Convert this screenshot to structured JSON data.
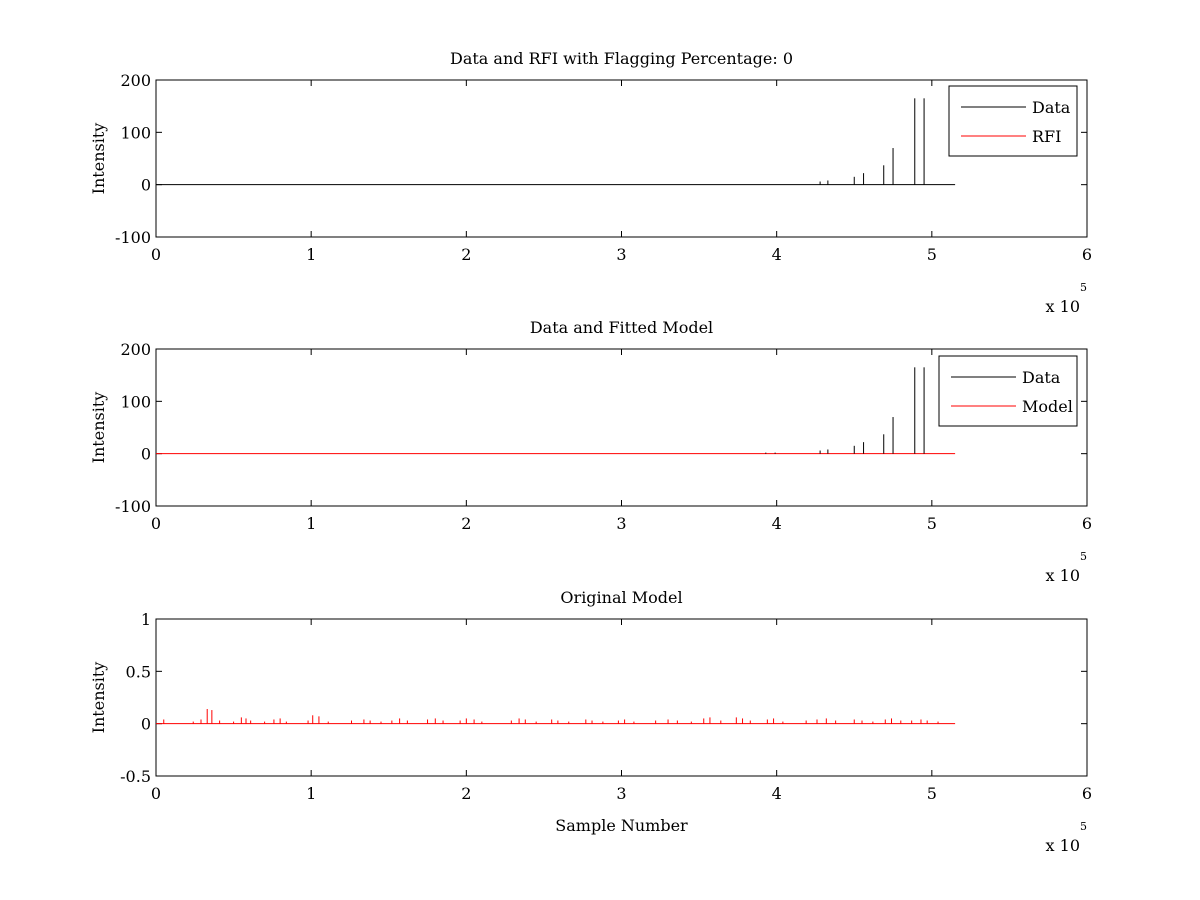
{
  "figure": {
    "background": "#ffffff"
  },
  "chart_data": [
    {
      "type": "line",
      "title": "Data and RFI with Flagging Percentage: 0",
      "xlabel": "",
      "ylabel": "Intensity",
      "xlim": [
        0,
        6
      ],
      "ylim": [
        -100,
        200
      ],
      "x_ticks": [
        "0",
        "1",
        "2",
        "3",
        "4",
        "5",
        "6"
      ],
      "y_ticks": [
        "-100",
        "0",
        "100",
        "200"
      ],
      "x_multiplier": {
        "base": "x 10",
        "exponent": "5"
      },
      "legend": {
        "position": "top-right",
        "entries": [
          {
            "label": "Data",
            "color": "#000000"
          },
          {
            "label": "RFI",
            "color": "#ff0000"
          }
        ]
      },
      "baseline": {
        "x_start": 0,
        "x_end": 5.15,
        "y": 0,
        "color": "#000000"
      },
      "series": [
        {
          "name": "Data",
          "color": "#000000",
          "spikes": [
            {
              "x": 4.28,
              "y": 6
            },
            {
              "x": 4.33,
              "y": 8
            },
            {
              "x": 4.5,
              "y": 15
            },
            {
              "x": 4.56,
              "y": 22
            },
            {
              "x": 4.69,
              "y": 37
            },
            {
              "x": 4.75,
              "y": 70
            },
            {
              "x": 4.89,
              "y": 165
            },
            {
              "x": 4.95,
              "y": 165
            }
          ]
        },
        {
          "name": "RFI",
          "color": "#ff0000",
          "spikes": []
        }
      ]
    },
    {
      "type": "line",
      "title": "Data and Fitted Model",
      "xlabel": "",
      "ylabel": "Intensity",
      "xlim": [
        0,
        6
      ],
      "ylim": [
        -100,
        200
      ],
      "x_ticks": [
        "0",
        "1",
        "2",
        "3",
        "4",
        "5",
        "6"
      ],
      "y_ticks": [
        "-100",
        "0",
        "100",
        "200"
      ],
      "x_multiplier": {
        "base": "x 10",
        "exponent": "5"
      },
      "legend": {
        "position": "top-right",
        "entries": [
          {
            "label": "Data",
            "color": "#000000"
          },
          {
            "label": "Model",
            "color": "#ff0000"
          }
        ]
      },
      "baseline": {
        "x_start": 0,
        "x_end": 5.15,
        "y": 0,
        "color": "#ff0000"
      },
      "series": [
        {
          "name": "Data",
          "color": "#000000",
          "spikes": [
            {
              "x": 3.93,
              "y": 2
            },
            {
              "x": 3.99,
              "y": 2
            },
            {
              "x": 4.28,
              "y": 6
            },
            {
              "x": 4.33,
              "y": 8
            },
            {
              "x": 4.5,
              "y": 15
            },
            {
              "x": 4.56,
              "y": 22
            },
            {
              "x": 4.69,
              "y": 37
            },
            {
              "x": 4.75,
              "y": 70
            },
            {
              "x": 4.89,
              "y": 165
            },
            {
              "x": 4.95,
              "y": 165
            }
          ]
        },
        {
          "name": "Model",
          "color": "#ff0000",
          "spikes": []
        }
      ]
    },
    {
      "type": "line",
      "title": "Original Model",
      "xlabel": "Sample Number",
      "ylabel": "Intensity",
      "xlim": [
        0,
        6
      ],
      "ylim": [
        -0.5,
        1
      ],
      "x_ticks": [
        "0",
        "1",
        "2",
        "3",
        "4",
        "5",
        "6"
      ],
      "y_ticks": [
        "-0.5",
        "0",
        "0.5",
        "1"
      ],
      "x_multiplier": {
        "base": "x 10",
        "exponent": "5"
      },
      "legend": null,
      "baseline": {
        "x_start": 0,
        "x_end": 5.15,
        "y": 0,
        "color": "#ff0000"
      },
      "series": [
        {
          "name": "",
          "color": "#ff0000",
          "spikes": [
            {
              "x": 0.05,
              "y": 0.04
            },
            {
              "x": 0.24,
              "y": 0.02
            },
            {
              "x": 0.29,
              "y": 0.04
            },
            {
              "x": 0.33,
              "y": 0.14
            },
            {
              "x": 0.36,
              "y": 0.13
            },
            {
              "x": 0.41,
              "y": 0.03
            },
            {
              "x": 0.5,
              "y": 0.02
            },
            {
              "x": 0.55,
              "y": 0.06
            },
            {
              "x": 0.58,
              "y": 0.05
            },
            {
              "x": 0.61,
              "y": 0.03
            },
            {
              "x": 0.7,
              "y": 0.02
            },
            {
              "x": 0.76,
              "y": 0.04
            },
            {
              "x": 0.8,
              "y": 0.05
            },
            {
              "x": 0.84,
              "y": 0.02
            },
            {
              "x": 0.98,
              "y": 0.03
            },
            {
              "x": 1.01,
              "y": 0.08
            },
            {
              "x": 1.05,
              "y": 0.07
            },
            {
              "x": 1.11,
              "y": 0.02
            },
            {
              "x": 1.26,
              "y": 0.03
            },
            {
              "x": 1.34,
              "y": 0.04
            },
            {
              "x": 1.38,
              "y": 0.03
            },
            {
              "x": 1.45,
              "y": 0.02
            },
            {
              "x": 1.52,
              "y": 0.03
            },
            {
              "x": 1.57,
              "y": 0.05
            },
            {
              "x": 1.62,
              "y": 0.03
            },
            {
              "x": 1.75,
              "y": 0.04
            },
            {
              "x": 1.8,
              "y": 0.05
            },
            {
              "x": 1.85,
              "y": 0.03
            },
            {
              "x": 1.96,
              "y": 0.03
            },
            {
              "x": 2.0,
              "y": 0.05
            },
            {
              "x": 2.05,
              "y": 0.04
            },
            {
              "x": 2.1,
              "y": 0.02
            },
            {
              "x": 2.29,
              "y": 0.03
            },
            {
              "x": 2.34,
              "y": 0.05
            },
            {
              "x": 2.38,
              "y": 0.04
            },
            {
              "x": 2.45,
              "y": 0.02
            },
            {
              "x": 2.55,
              "y": 0.04
            },
            {
              "x": 2.59,
              "y": 0.03
            },
            {
              "x": 2.66,
              "y": 0.02
            },
            {
              "x": 2.77,
              "y": 0.04
            },
            {
              "x": 2.81,
              "y": 0.03
            },
            {
              "x": 2.88,
              "y": 0.02
            },
            {
              "x": 2.98,
              "y": 0.03
            },
            {
              "x": 3.02,
              "y": 0.04
            },
            {
              "x": 3.08,
              "y": 0.02
            },
            {
              "x": 3.22,
              "y": 0.03
            },
            {
              "x": 3.3,
              "y": 0.04
            },
            {
              "x": 3.36,
              "y": 0.03
            },
            {
              "x": 3.45,
              "y": 0.02
            },
            {
              "x": 3.53,
              "y": 0.05
            },
            {
              "x": 3.57,
              "y": 0.06
            },
            {
              "x": 3.64,
              "y": 0.03
            },
            {
              "x": 3.74,
              "y": 0.06
            },
            {
              "x": 3.78,
              "y": 0.05
            },
            {
              "x": 3.83,
              "y": 0.03
            },
            {
              "x": 3.94,
              "y": 0.04
            },
            {
              "x": 3.98,
              "y": 0.05
            },
            {
              "x": 4.04,
              "y": 0.02
            },
            {
              "x": 4.19,
              "y": 0.03
            },
            {
              "x": 4.26,
              "y": 0.04
            },
            {
              "x": 4.32,
              "y": 0.05
            },
            {
              "x": 4.38,
              "y": 0.03
            },
            {
              "x": 4.5,
              "y": 0.04
            },
            {
              "x": 4.55,
              "y": 0.03
            },
            {
              "x": 4.62,
              "y": 0.02
            },
            {
              "x": 4.7,
              "y": 0.04
            },
            {
              "x": 4.74,
              "y": 0.05
            },
            {
              "x": 4.8,
              "y": 0.03
            },
            {
              "x": 4.87,
              "y": 0.03
            },
            {
              "x": 4.93,
              "y": 0.04
            },
            {
              "x": 4.97,
              "y": 0.03
            },
            {
              "x": 5.04,
              "y": 0.02
            }
          ]
        }
      ]
    }
  ]
}
